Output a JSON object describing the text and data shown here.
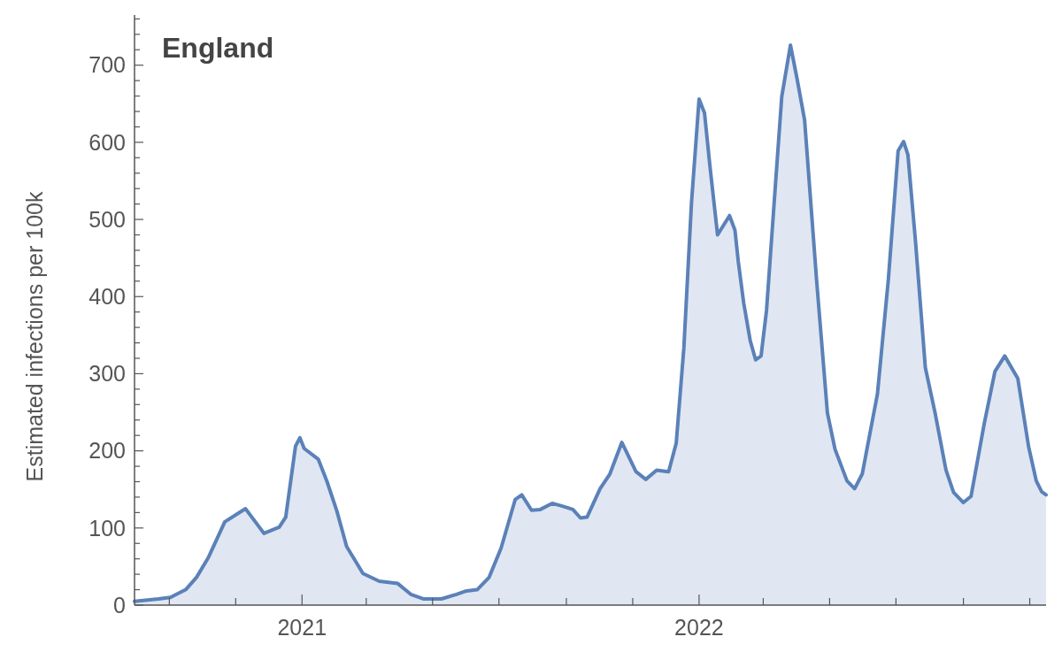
{
  "chart_data": {
    "type": "area",
    "title": "England",
    "ylabel": "Estimated infections per 100k",
    "x": [
      "2020-07-31",
      "2020-08-22",
      "2020-09-02",
      "2020-09-16",
      "2020-09-26",
      "2020-10-07",
      "2020-10-22",
      "2020-11-10",
      "2020-11-27",
      "2020-12-11",
      "2020-12-17",
      "2020-12-26",
      "2020-12-30",
      "2021-01-03",
      "2021-01-16",
      "2021-01-24",
      "2021-02-02",
      "2021-02-11",
      "2021-02-26",
      "2021-03-13",
      "2021-03-30",
      "2021-04-11",
      "2021-04-23",
      "2021-05-09",
      "2021-05-23",
      "2021-05-31",
      "2021-06-11",
      "2021-06-22",
      "2021-07-03",
      "2021-07-16",
      "2021-07-22",
      "2021-07-31",
      "2021-08-08",
      "2021-08-19",
      "2021-08-29",
      "2021-09-07",
      "2021-09-14",
      "2021-09-20",
      "2021-10-02",
      "2021-10-11",
      "2021-10-22",
      "2021-11-04",
      "2021-11-13",
      "2021-11-23",
      "2021-12-04",
      "2021-12-11",
      "2021-12-18",
      "2021-12-25",
      "2022-01-01",
      "2022-01-06",
      "2022-01-11",
      "2022-01-18",
      "2022-01-29",
      "2022-02-03",
      "2022-02-06",
      "2022-02-11",
      "2022-02-17",
      "2022-02-22",
      "2022-02-27",
      "2022-03-04",
      "2022-03-11",
      "2022-03-18",
      "2022-03-26",
      "2022-04-01",
      "2022-04-08",
      "2022-04-19",
      "2022-04-29",
      "2022-05-06",
      "2022-05-17",
      "2022-05-24",
      "2022-05-31",
      "2022-06-14",
      "2022-06-24",
      "2022-07-03",
      "2022-07-08",
      "2022-07-12",
      "2022-07-19",
      "2022-07-28",
      "2022-08-06",
      "2022-08-16",
      "2022-08-23",
      "2022-09-01",
      "2022-09-08",
      "2022-09-20",
      "2022-09-30",
      "2022-10-09",
      "2022-10-21",
      "2022-10-31",
      "2022-11-07",
      "2022-11-12",
      "2022-11-16"
    ],
    "series": [
      {
        "color": "#5b81b8",
        "values": [
          5,
          8,
          10,
          20,
          36,
          62,
          108,
          125,
          93,
          101,
          114,
          206,
          217,
          203,
          189,
          160,
          122,
          76,
          41,
          31,
          28,
          14,
          8,
          8,
          14,
          18,
          20,
          36,
          74,
          137,
          143,
          123,
          124,
          132,
          128,
          124,
          113,
          114,
          151,
          170,
          211,
          173,
          163,
          175,
          173,
          210,
          333,
          521,
          656,
          638,
          569,
          480,
          505,
          486,
          446,
          392,
          343,
          318,
          323,
          382,
          521,
          659,
          726,
          683,
          629,
          422,
          249,
          202,
          161,
          151,
          170,
          274,
          422,
          589,
          601,
          584,
          471,
          308,
          249,
          175,
          146,
          133,
          141,
          234,
          303,
          323,
          294,
          205,
          161,
          147,
          143
        ]
      }
    ],
    "xlim": [
      "2020-07-31",
      "2022-11-16"
    ],
    "xticks": [
      {
        "value": "2020-09-01",
        "label": null
      },
      {
        "value": "2020-11-01",
        "label": null
      },
      {
        "value": "2021-01-01",
        "label": "2021"
      },
      {
        "value": "2021-03-01",
        "label": null
      },
      {
        "value": "2021-05-01",
        "label": null
      },
      {
        "value": "2021-07-01",
        "label": null
      },
      {
        "value": "2021-09-01",
        "label": null
      },
      {
        "value": "2021-11-01",
        "label": null
      },
      {
        "value": "2022-01-01",
        "label": "2022"
      },
      {
        "value": "2022-03-01",
        "label": null
      },
      {
        "value": "2022-05-01",
        "label": null
      },
      {
        "value": "2022-07-01",
        "label": null
      },
      {
        "value": "2022-09-01",
        "label": null
      },
      {
        "value": "2022-11-01",
        "label": null
      }
    ],
    "ylim": [
      0,
      765
    ],
    "yticks": [
      0,
      {
        "value": 20,
        "label": null
      },
      {
        "value": 40,
        "label": null
      },
      {
        "value": 60,
        "label": null
      },
      {
        "value": 80,
        "label": null
      },
      100,
      {
        "value": 120,
        "label": null
      },
      {
        "value": 140,
        "label": null
      },
      {
        "value": 160,
        "label": null
      },
      {
        "value": 180,
        "label": null
      },
      200,
      {
        "value": 220,
        "label": null
      },
      {
        "value": 240,
        "label": null
      },
      {
        "value": 260,
        "label": null
      },
      {
        "value": 280,
        "label": null
      },
      300,
      {
        "value": 320,
        "label": null
      },
      {
        "value": 340,
        "label": null
      },
      {
        "value": 360,
        "label": null
      },
      {
        "value": 380,
        "label": null
      },
      400,
      {
        "value": 420,
        "label": null
      },
      {
        "value": 440,
        "label": null
      },
      {
        "value": 460,
        "label": null
      },
      {
        "value": 480,
        "label": null
      },
      500,
      {
        "value": 520,
        "label": null
      },
      {
        "value": 540,
        "label": null
      },
      {
        "value": 560,
        "label": null
      },
      {
        "value": 580,
        "label": null
      },
      600,
      {
        "value": 620,
        "label": null
      },
      {
        "value": 640,
        "label": null
      },
      {
        "value": 660,
        "label": null
      },
      {
        "value": 680,
        "label": null
      },
      700,
      {
        "value": 720,
        "label": null
      },
      {
        "value": 740,
        "label": null
      },
      {
        "value": 760,
        "label": null
      }
    ],
    "grid": false
  }
}
